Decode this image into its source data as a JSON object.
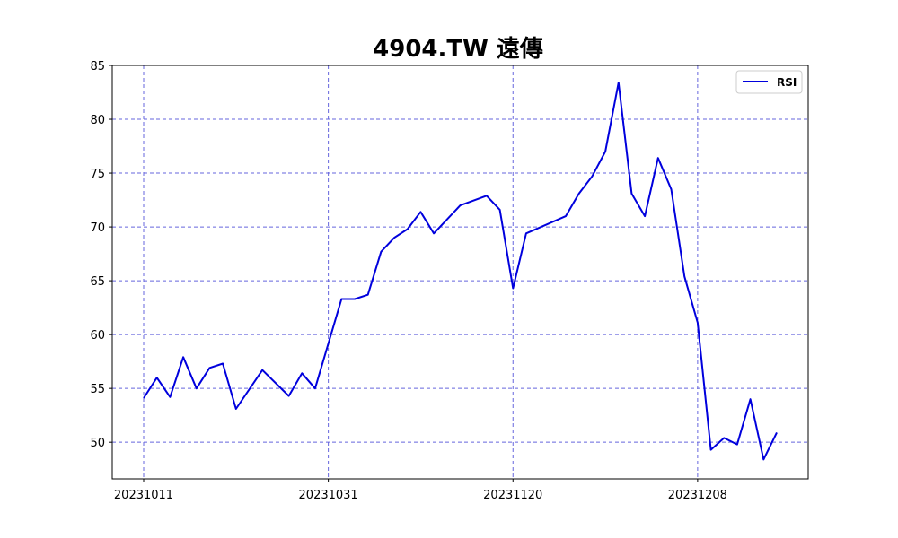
{
  "chart_data": {
    "type": "line",
    "title": "4904.TW 遠傳",
    "xlabel": "",
    "ylabel": "",
    "x": [
      "20231011",
      "20231012",
      "20231013",
      "20231016",
      "20231017",
      "20231018",
      "20231019",
      "20231020",
      "20231023",
      "20231024",
      "20231025",
      "20231026",
      "20231027",
      "20231030",
      "20231031",
      "20231101",
      "20231102",
      "20231103",
      "20231106",
      "20231107",
      "20231108",
      "20231109",
      "20231110",
      "20231113",
      "20231114",
      "20231115",
      "20231116",
      "20231117",
      "20231120",
      "20231121",
      "20231122",
      "20231123",
      "20231124",
      "20231127",
      "20231128",
      "20231129",
      "20231130",
      "20231201",
      "20231204",
      "20231205",
      "20231206",
      "20231207",
      "20231208",
      "20231211",
      "20231212",
      "20231213",
      "20231214",
      "20231215",
      "20231218"
    ],
    "x_tick_labels": [
      "20231011",
      "20231031",
      "20231120",
      "20231208"
    ],
    "series": [
      {
        "name": "RSI",
        "color": "#0000dd",
        "values": [
          54.1,
          56.0,
          54.2,
          57.9,
          55.0,
          56.9,
          57.3,
          53.1,
          null,
          56.7,
          null,
          54.3,
          56.4,
          55.0,
          null,
          63.3,
          63.3,
          63.7,
          67.7,
          69.0,
          69.8,
          71.4,
          69.4,
          null,
          72.0,
          null,
          72.9,
          71.6,
          64.3,
          69.4,
          null,
          null,
          71.0,
          73.1,
          74.7,
          77.0,
          83.4,
          73.1,
          71.0,
          76.4,
          73.5,
          65.4,
          61.1,
          49.3,
          50.4,
          49.8,
          54.0,
          48.4,
          50.9
        ]
      }
    ],
    "ylim": [
      46.6,
      85
    ],
    "yticks": [
      50,
      55,
      60,
      65,
      70,
      75,
      80,
      85
    ],
    "grid": true,
    "grid_color": "#6666dd",
    "legend": {
      "position": "top-right",
      "entries": [
        "RSI"
      ]
    }
  }
}
